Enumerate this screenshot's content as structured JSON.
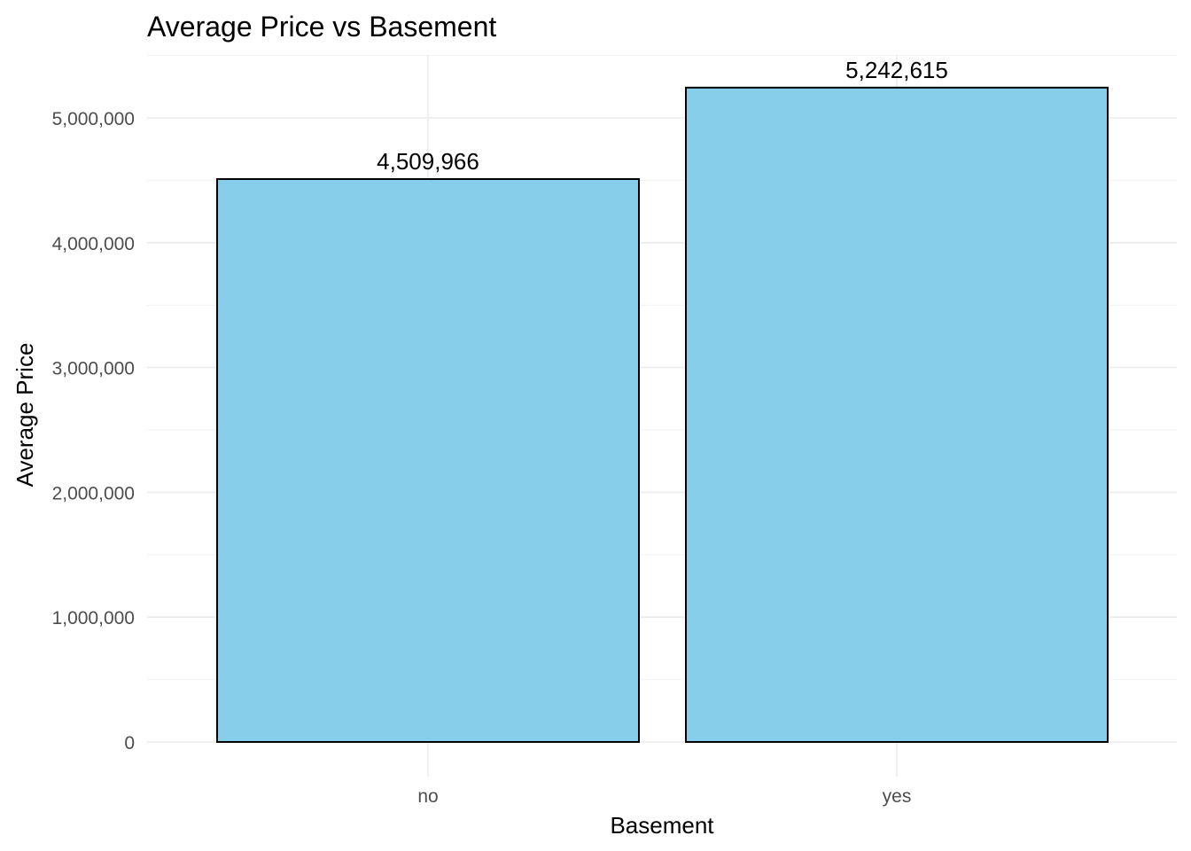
{
  "chart_data": {
    "type": "bar",
    "title": "Average Price vs Basement",
    "xlabel": "Basement",
    "ylabel": "Average Price",
    "categories": [
      "no",
      "yes"
    ],
    "values": [
      4509966,
      5242615
    ],
    "value_labels": [
      "4,509,966",
      "5,242,615"
    ],
    "ylim": [
      0,
      5500000
    ],
    "yticks": [
      0,
      1000000,
      2000000,
      3000000,
      4000000,
      5000000
    ],
    "ytick_labels": [
      "0",
      "1,000,000",
      "2,000,000",
      "3,000,000",
      "4,000,000",
      "5,000,000"
    ],
    "grid": true,
    "legend": "none",
    "bar_color": "#87CEEB",
    "bar_outline_color": "#000000"
  }
}
